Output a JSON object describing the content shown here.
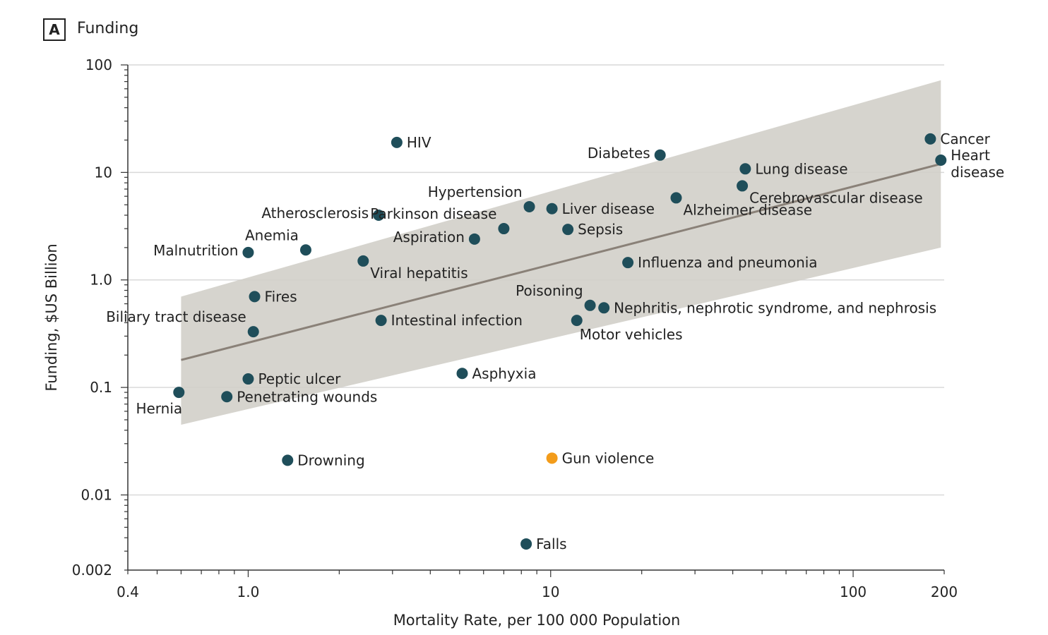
{
  "panel": {
    "badge": "A",
    "title": "Funding"
  },
  "chart_data": {
    "type": "scatter",
    "title": "Funding",
    "xlabel": "Mortality Rate, per 100 000 Population",
    "ylabel": "Funding, $US Billion",
    "xscale": "log",
    "yscale": "log",
    "xlim": [
      0.4,
      200
    ],
    "ylim": [
      0.002,
      100
    ],
    "xticks": [
      {
        "v": 0.4,
        "label": "0.4"
      },
      {
        "v": 1,
        "label": "1.0"
      },
      {
        "v": 10,
        "label": "10"
      },
      {
        "v": 100,
        "label": "100"
      },
      {
        "v": 200,
        "label": "200"
      }
    ],
    "yticks": [
      {
        "v": 100,
        "label": "100"
      },
      {
        "v": 10,
        "label": "10"
      },
      {
        "v": 1,
        "label": "1.0"
      },
      {
        "v": 0.1,
        "label": "0.1"
      },
      {
        "v": 0.01,
        "label": "0.01"
      },
      {
        "v": 0.002,
        "label": "0.002"
      }
    ],
    "grid": true,
    "colors": {
      "point": "#1f4e5a",
      "highlight": "#f39c1a",
      "band": "#d2cfc9",
      "trend": "#8a8178",
      "grid": "#d9d9d9"
    },
    "trend": {
      "x": [
        0.6,
        195
      ],
      "y": [
        0.18,
        12
      ]
    },
    "band": {
      "x": [
        0.6,
        195
      ],
      "upper": [
        0.7,
        72
      ],
      "lower": [
        0.045,
        2.0
      ]
    },
    "points": [
      {
        "name": "Cancer",
        "x": 180,
        "y": 20.5,
        "label_pos": "right"
      },
      {
        "name": "Heart disease",
        "x": 195,
        "y": 13,
        "label_pos": "right2"
      },
      {
        "name": "Diabetes",
        "x": 23,
        "y": 14.5,
        "label_pos": "left"
      },
      {
        "name": "HIV",
        "x": 3.1,
        "y": 19,
        "label_pos": "right"
      },
      {
        "name": "Lung disease",
        "x": 44,
        "y": 10.8,
        "label_pos": "right"
      },
      {
        "name": "Cerebrovascular disease",
        "x": 43,
        "y": 7.5,
        "label_pos": "right-below"
      },
      {
        "name": "Alzheimer disease",
        "x": 26,
        "y": 5.8,
        "label_pos": "right-below"
      },
      {
        "name": "Hypertension",
        "x": 8.5,
        "y": 4.8,
        "label_pos": "left-above"
      },
      {
        "name": "Liver disease",
        "x": 10.1,
        "y": 4.6,
        "label_pos": "right"
      },
      {
        "name": "Atherosclerosis",
        "x": 2.7,
        "y": 4.0,
        "label_pos": "left"
      },
      {
        "name": "Parkinson disease",
        "x": 7.0,
        "y": 3.0,
        "label_pos": "left-above"
      },
      {
        "name": "Sepsis",
        "x": 11.4,
        "y": 2.95,
        "label_pos": "right"
      },
      {
        "name": "Aspiration",
        "x": 5.6,
        "y": 2.4,
        "label_pos": "left"
      },
      {
        "name": "Anemia",
        "x": 1.55,
        "y": 1.9,
        "label_pos": "left-above"
      },
      {
        "name": "Malnutrition",
        "x": 1.0,
        "y": 1.8,
        "label_pos": "left"
      },
      {
        "name": "Viral hepatitis",
        "x": 2.4,
        "y": 1.5,
        "label_pos": "right-below"
      },
      {
        "name": "Influenza and pneumonia",
        "x": 18,
        "y": 1.45,
        "label_pos": "right"
      },
      {
        "name": "Fires",
        "x": 1.05,
        "y": 0.7,
        "label_pos": "right"
      },
      {
        "name": "Poisoning",
        "x": 13.5,
        "y": 0.58,
        "label_pos": "left-above"
      },
      {
        "name": "Nephritis, nephrotic syndrome, and nephrosis",
        "x": 15,
        "y": 0.55,
        "label_pos": "right"
      },
      {
        "name": "Intestinal infection",
        "x": 2.75,
        "y": 0.42,
        "label_pos": "right"
      },
      {
        "name": "Motor vehicles",
        "x": 12.2,
        "y": 0.42,
        "label_pos": "below"
      },
      {
        "name": "Biliary tract disease",
        "x": 1.04,
        "y": 0.33,
        "label_pos": "left-above"
      },
      {
        "name": "Asphyxia",
        "x": 5.1,
        "y": 0.135,
        "label_pos": "right"
      },
      {
        "name": "Peptic ulcer",
        "x": 1.0,
        "y": 0.12,
        "label_pos": "right"
      },
      {
        "name": "Penetrating wounds",
        "x": 0.85,
        "y": 0.082,
        "label_pos": "right"
      },
      {
        "name": "Hernia",
        "x": 0.59,
        "y": 0.09,
        "label_pos": "below-left"
      },
      {
        "name": "Drowning",
        "x": 1.35,
        "y": 0.021,
        "label_pos": "right"
      },
      {
        "name": "Gun violence",
        "x": 10.1,
        "y": 0.022,
        "label_pos": "right",
        "highlight": true
      },
      {
        "name": "Falls",
        "x": 8.3,
        "y": 0.0035,
        "label_pos": "right"
      }
    ]
  }
}
